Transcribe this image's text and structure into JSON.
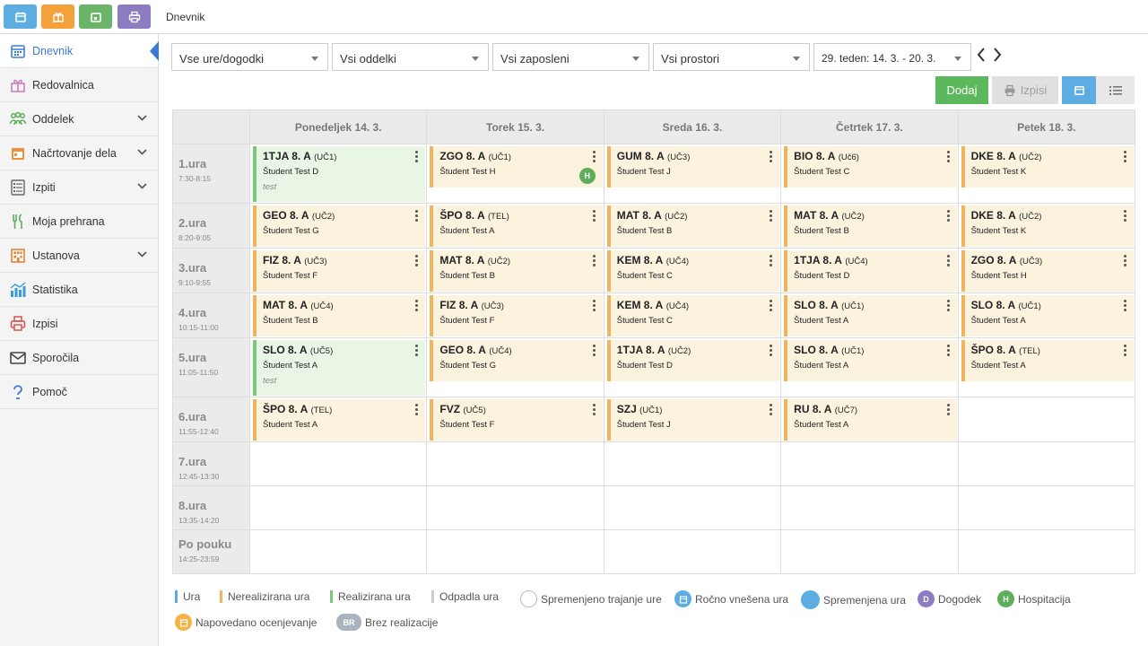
{
  "app": {
    "breadcrumb": "Dnevnik"
  },
  "topbar": {
    "buttons": [
      {
        "icon": "calendar-icon",
        "color": "#5dade2"
      },
      {
        "icon": "gift-icon",
        "color": "#f5a13a"
      },
      {
        "icon": "calendar-day-icon",
        "color": "#6ab56a"
      },
      {
        "icon": "printer-icon",
        "color": "#8e7cc3"
      }
    ]
  },
  "sidebar": {
    "items": [
      {
        "label": "Dnevnik",
        "icon": "calendar-icon",
        "color": "#3a7bd5",
        "active": true,
        "chevron": false
      },
      {
        "label": "Redovalnica",
        "icon": "gift-icon",
        "color": "#c77dbb",
        "chevron": false
      },
      {
        "label": "Oddelek",
        "icon": "group-icon",
        "color": "#5aae5a",
        "chevron": true
      },
      {
        "label": "Načrtovanje dela",
        "icon": "planner-icon",
        "color": "#f09036",
        "chevron": true
      },
      {
        "label": "Izpiti",
        "icon": "list-icon",
        "color": "#666",
        "chevron": true
      },
      {
        "label": "Moja prehrana",
        "icon": "cutlery-icon",
        "color": "#5aae5a",
        "chevron": false
      },
      {
        "label": "Ustanova",
        "icon": "building-icon",
        "color": "#e67e22",
        "chevron": true
      },
      {
        "label": "Statistika",
        "icon": "stats-icon",
        "color": "#3a9ad5",
        "chevron": false
      },
      {
        "label": "Izpisi",
        "icon": "printer-icon",
        "color": "#d9534f",
        "chevron": false
      },
      {
        "label": "Sporočila",
        "icon": "envelope-icon",
        "color": "#444",
        "chevron": false
      },
      {
        "label": "Pomoč",
        "icon": "help-icon",
        "color": "#3a7bd5",
        "chevron": false
      }
    ]
  },
  "filters": {
    "hours": "Vse ure/dogodki",
    "departments": "Vsi oddelki",
    "employees": "Vsi zaposleni",
    "rooms": "Vsi prostori",
    "week": "29. teden: 14. 3. - 20. 3."
  },
  "actions": {
    "add": "Dodaj",
    "print": "Izpisi"
  },
  "days": [
    "Ponedeljek 14. 3.",
    "Torek 15. 3.",
    "Sreda 16. 3.",
    "Četrtek 17. 3.",
    "Petek 18. 3."
  ],
  "periods": [
    {
      "name": "1.ura",
      "time": "7:30-8:15"
    },
    {
      "name": "2.ura",
      "time": "8:20-9:05"
    },
    {
      "name": "3.ura",
      "time": "9:10-9:55"
    },
    {
      "name": "4.ura",
      "time": "10:15-11:00"
    },
    {
      "name": "5.ura",
      "time": "11:05-11:50"
    },
    {
      "name": "6.ura",
      "time": "11:55-12:40"
    },
    {
      "name": "7.ura",
      "time": "12:45-13:30"
    },
    {
      "name": "8.ura",
      "time": "13:35-14:20"
    },
    {
      "name": "Po pouku",
      "time": "14:25-23:59"
    }
  ],
  "lessons": [
    [
      {
        "subject": "1TJA 8. A",
        "room": "(UČ1)",
        "teacher": "Študent Test D",
        "note": "test",
        "status": "realized"
      },
      {
        "subject": "ZGO 8. A",
        "room": "(UČ1)",
        "teacher": "Študent Test H",
        "badge": "H"
      },
      {
        "subject": "GUM 8. A",
        "room": "(UČ3)",
        "teacher": "Študent Test J"
      },
      {
        "subject": "BIO 8. A",
        "room": "(Uč6)",
        "teacher": "Študent Test C"
      },
      {
        "subject": "DKE 8. A",
        "room": "(UČ2)",
        "teacher": "Študent Test K"
      }
    ],
    [
      {
        "subject": "GEO 8. A",
        "room": "(UČ2)",
        "teacher": "Študent Test G"
      },
      {
        "subject": "ŠPO 8. A",
        "room": "(TEL)",
        "teacher": "Študent Test A"
      },
      {
        "subject": "MAT 8. A",
        "room": "(UČ2)",
        "teacher": "Študent Test B"
      },
      {
        "subject": "MAT 8. A",
        "room": "(UČ2)",
        "teacher": "Študent Test B"
      },
      {
        "subject": "DKE 8. A",
        "room": "(UČ2)",
        "teacher": "Študent Test K"
      }
    ],
    [
      {
        "subject": "FIZ 8. A",
        "room": "(UČ3)",
        "teacher": "Študent Test F"
      },
      {
        "subject": "MAT 8. A",
        "room": "(UČ2)",
        "teacher": "Študent Test B"
      },
      {
        "subject": "KEM 8. A",
        "room": "(UČ4)",
        "teacher": "Študent Test C"
      },
      {
        "subject": "1TJA 8. A",
        "room": "(UČ4)",
        "teacher": "Študent Test D"
      },
      {
        "subject": "ZGO 8. A",
        "room": "(UČ3)",
        "teacher": "Študent Test H"
      }
    ],
    [
      {
        "subject": "MAT 8. A",
        "room": "(UČ4)",
        "teacher": "Študent Test B"
      },
      {
        "subject": "FIZ 8. A",
        "room": "(UČ3)",
        "teacher": "Študent Test F"
      },
      {
        "subject": "KEM 8. A",
        "room": "(UČ4)",
        "teacher": "Študent Test C"
      },
      {
        "subject": "SLO 8. A",
        "room": "(UČ1)",
        "teacher": "Študent Test A"
      },
      {
        "subject": "SLO 8. A",
        "room": "(UČ1)",
        "teacher": "Študent Test A"
      }
    ],
    [
      {
        "subject": "SLO 8. A",
        "room": "(UČ5)",
        "teacher": "Študent Test A",
        "note": "test",
        "status": "realized"
      },
      {
        "subject": "GEO 8. A",
        "room": "(UČ4)",
        "teacher": "Študent Test G"
      },
      {
        "subject": "1TJA 8. A",
        "room": "(UČ2)",
        "teacher": "Študent Test D"
      },
      {
        "subject": "SLO 8. A",
        "room": "(UČ1)",
        "teacher": "Študent Test A"
      },
      {
        "subject": "ŠPO 8. A",
        "room": "(TEL)",
        "teacher": "Študent Test A"
      }
    ],
    [
      {
        "subject": "ŠPO 8. A",
        "room": "(TEL)",
        "teacher": "Študent Test A"
      },
      {
        "subject": "FVZ",
        "room": "(UČ5)",
        "teacher": "Študent Test F"
      },
      {
        "subject": "SZJ",
        "room": "(UČ1)",
        "teacher": "Študent Test J"
      },
      {
        "subject": "RU 8. A",
        "room": "(UČ7)",
        "teacher": "Študent Test A"
      },
      null
    ],
    [
      null,
      null,
      null,
      null,
      null
    ],
    [
      null,
      null,
      null,
      null,
      null
    ],
    [
      null,
      null,
      null,
      null,
      null
    ]
  ],
  "legend": [
    {
      "label": "Ura",
      "kind": "bar",
      "color": "#5dade2"
    },
    {
      "label": "Nerealizirana ura",
      "kind": "bar",
      "color": "#f0b45c"
    },
    {
      "label": "Realizirana ura",
      "kind": "bar",
      "color": "#7dc97a"
    },
    {
      "label": "Odpadla ura",
      "kind": "bar",
      "color": "#cccccc"
    },
    {
      "label": "Spremenjeno trajanje ure",
      "kind": "circle-outline",
      "color": "#cccccc"
    },
    {
      "label": "Ročno vnešena ura",
      "kind": "circle-icon",
      "color": "#5dade2"
    },
    {
      "label": "Spremenjena ura",
      "kind": "circle",
      "color": "#5dade2"
    },
    {
      "label": "Dogodek",
      "kind": "circle-letter",
      "letter": "D",
      "color": "#8e7cc3"
    },
    {
      "label": "Hospitacija",
      "kind": "circle-letter",
      "letter": "H",
      "color": "#5fae5c"
    },
    {
      "label": "Napovedano ocenjevanje",
      "kind": "circle-icon",
      "color": "#f5b342"
    },
    {
      "label": "Brez realizacije",
      "kind": "pill",
      "letter": "BR",
      "color": "#a9b4bf"
    }
  ]
}
